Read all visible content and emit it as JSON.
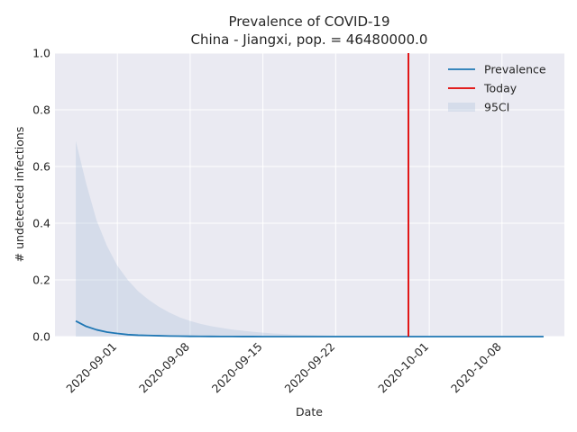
{
  "chart_data": {
    "type": "line",
    "title": "Prevalence of COVID-19",
    "subtitle": "China - Jiangxi, pop. = 46480000.0",
    "xlabel": "Date",
    "ylabel": "# undetected infections",
    "ylim": [
      0,
      1
    ],
    "xlim": [
      "2020-08-26",
      "2020-10-14"
    ],
    "grid": true,
    "legend_position": "top-right",
    "x_ticks": [
      "2020-09-01",
      "2020-09-08",
      "2020-09-15",
      "2020-09-22",
      "2020-10-01",
      "2020-10-08"
    ],
    "y_ticks": [
      "0.0",
      "0.2",
      "0.4",
      "0.6",
      "0.8",
      "1.0"
    ],
    "x": [
      "2020-08-28",
      "2020-08-29",
      "2020-08-30",
      "2020-08-31",
      "2020-09-01",
      "2020-09-02",
      "2020-09-03",
      "2020-09-04",
      "2020-09-05",
      "2020-09-06",
      "2020-09-07",
      "2020-09-08",
      "2020-09-09",
      "2020-09-10",
      "2020-09-11",
      "2020-09-12",
      "2020-09-13",
      "2020-09-14",
      "2020-09-15",
      "2020-09-16",
      "2020-09-17",
      "2020-09-18",
      "2020-09-19",
      "2020-09-20",
      "2020-09-21",
      "2020-09-22",
      "2020-09-23",
      "2020-09-24",
      "2020-09-25",
      "2020-09-26",
      "2020-09-27",
      "2020-09-28",
      "2020-09-29",
      "2020-09-30",
      "2020-10-01",
      "2020-10-02",
      "2020-10-03",
      "2020-10-04",
      "2020-10-05",
      "2020-10-06",
      "2020-10-07",
      "2020-10-08",
      "2020-10-09",
      "2020-10-10",
      "2020-10-11",
      "2020-10-12"
    ],
    "series": [
      {
        "name": "Prevalence",
        "color": "#1f77b4",
        "values": [
          0.055,
          0.036,
          0.024,
          0.016,
          0.011,
          0.007,
          0.005,
          0.004,
          0.003,
          0.002,
          0.0015,
          0.001,
          0.0008,
          0.0006,
          0.0004,
          0.0003,
          0.0002,
          0.0002,
          0.0001,
          0.0001,
          0.0001,
          0,
          0,
          0,
          0,
          0,
          0,
          0,
          0,
          0,
          0,
          0,
          0,
          0,
          0,
          0,
          0,
          0,
          0,
          0,
          0,
          0,
          0,
          0,
          0,
          0
        ]
      }
    ],
    "ci_band": {
      "name": "95CI",
      "color": "#b0c4de",
      "lower": [
        0,
        0,
        0,
        0,
        0,
        0,
        0,
        0,
        0,
        0,
        0,
        0,
        0,
        0,
        0,
        0,
        0,
        0,
        0,
        0,
        0,
        0,
        0,
        0,
        0,
        0,
        0,
        0,
        0,
        0,
        0,
        0,
        0,
        0,
        0,
        0,
        0,
        0,
        0,
        0,
        0,
        0,
        0,
        0,
        0,
        0
      ],
      "upper": [
        0.69,
        0.54,
        0.41,
        0.32,
        0.25,
        0.2,
        0.16,
        0.13,
        0.105,
        0.085,
        0.068,
        0.055,
        0.045,
        0.037,
        0.031,
        0.025,
        0.021,
        0.017,
        0.014,
        0.011,
        0.009,
        0.007,
        0.006,
        0.005,
        0.004,
        0.003,
        0.0025,
        0.002,
        0.0015,
        0.0012,
        0.001,
        0.0008,
        0.0006,
        0.0005,
        0.0004,
        0.0003,
        0.0002,
        0.0002,
        0.0001,
        0.0001,
        0.0001,
        0,
        0,
        0,
        0,
        0
      ]
    },
    "today": {
      "name": "Today",
      "date": "2020-09-29",
      "color": "#e00000"
    }
  }
}
